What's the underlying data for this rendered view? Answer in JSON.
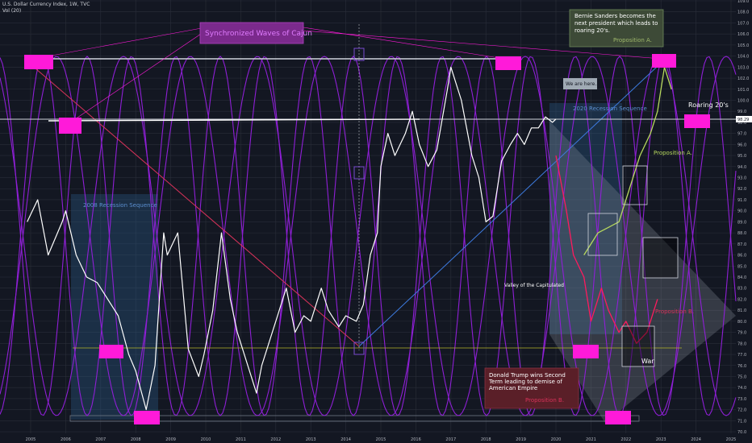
{
  "header": {
    "symbol_line": "U.S. Dollar Currency Index, 1W, TVC",
    "volume_line": "Vol (20)"
  },
  "chart_data": {
    "type": "line",
    "title": "",
    "price_line": {
      "label": "98.29",
      "value": 98.29
    },
    "x_ticks": [
      "2005",
      "2006",
      "2007",
      "2008",
      "2009",
      "2010",
      "2011",
      "2012",
      "2013",
      "2014",
      "2015",
      "2016",
      "2017",
      "2018",
      "2019",
      "2020",
      "2021",
      "2022",
      "2023",
      "2024",
      "2025"
    ],
    "y_ticks": [
      109,
      108,
      107,
      106,
      105,
      104,
      103,
      102,
      101,
      100,
      99,
      98,
      97,
      96,
      95,
      94,
      93,
      92,
      91,
      90,
      89,
      88,
      87,
      86,
      85,
      84,
      83,
      82,
      81,
      80,
      79,
      78,
      77,
      76,
      75,
      74,
      73,
      72,
      71,
      70
    ],
    "ylim": [
      70,
      109
    ],
    "xlim": [
      2004.9,
      2025.2
    ],
    "series": [
      {
        "color": "#ffffff",
        "x": [
          2004.9,
          2005.2,
          2005.5,
          2005.9,
          2006.0,
          2006.3,
          2006.6,
          2006.9,
          2007.2,
          2007.5,
          2007.8,
          2008.0,
          2008.3,
          2008.55,
          2008.8,
          2008.9,
          2009.2,
          2009.5,
          2009.8,
          2009.95,
          2010.2,
          2010.45,
          2010.7,
          2010.9,
          2011.2,
          2011.45,
          2011.6,
          2011.8,
          2012.0,
          2012.3,
          2012.55,
          2012.8,
          2013.0,
          2013.3,
          2013.5,
          2013.8,
          2014.0,
          2014.3,
          2014.5,
          2014.7,
          2014.9,
          2015.0,
          2015.2,
          2015.4,
          2015.7,
          2015.9,
          2016.1,
          2016.35,
          2016.6,
          2016.9,
          2017.0,
          2017.3,
          2017.6,
          2017.8,
          2018.0,
          2018.2,
          2018.45,
          2018.7,
          2018.9,
          2019.1,
          2019.3,
          2019.5,
          2019.7,
          2019.9,
          2020.0
        ],
        "values": [
          89,
          91,
          86,
          89,
          90,
          86,
          84,
          83.5,
          82,
          80.5,
          77,
          75.5,
          72,
          76,
          88,
          86,
          88,
          77.5,
          75,
          77,
          81,
          88,
          82,
          79,
          76,
          73.5,
          76,
          78,
          80,
          83,
          79,
          80.5,
          80,
          83,
          81,
          79.5,
          80.5,
          80,
          81.5,
          86,
          88,
          94,
          97,
          95,
          97,
          99,
          96,
          94,
          95.5,
          101,
          103,
          100,
          95,
          93,
          89,
          89.5,
          94.5,
          96,
          97,
          96,
          97.5,
          97.5,
          98.5,
          98,
          98.3
        ]
      },
      {
        "name": "Proposition A.",
        "color": "#b7d95e",
        "x": [
          2020.8,
          2021.2,
          2021.5,
          2021.8,
          2022.0,
          2022.4,
          2022.7,
          2022.9,
          2023.1,
          2023.3
        ],
        "values": [
          86,
          88,
          88.5,
          89,
          91,
          95,
          97,
          99,
          103,
          101
        ]
      },
      {
        "name": "Proposition B.",
        "color": "#ff1a5e",
        "x": [
          2020.0,
          2020.3,
          2020.5,
          2020.8,
          2021.0,
          2021.3,
          2021.5,
          2021.8,
          2022.0,
          2022.3,
          2022.6,
          2022.9
        ],
        "values": [
          95,
          90,
          86,
          84,
          80,
          83,
          81,
          79,
          80,
          78,
          79,
          82
        ]
      }
    ],
    "annotations": [
      "Synchronized Waves of Cajun",
      "Bernie Sanders becomes the next president which leads to roaring 20's.",
      "Proposition A.",
      "We are here..",
      "2020 Recession Sequence",
      "2008 Recession Sequence",
      "Roaring 20's",
      "Proposition A.",
      "Valley of the Capitulated",
      "Proposition B.",
      "War",
      "Donald Trump wins Second Term leading to demise of American Empire",
      "Proposition B."
    ],
    "grid": true,
    "legend": "none"
  },
  "colors": {
    "background": "#131722",
    "grid": "#2a2e39",
    "price": "#ffffff",
    "wave": "#8f1fd6",
    "marker": "#ff1ad9",
    "recession_box": "#2c5d8a",
    "trend_blue": "#3d7be0",
    "trend_red": "#d9325a"
  }
}
